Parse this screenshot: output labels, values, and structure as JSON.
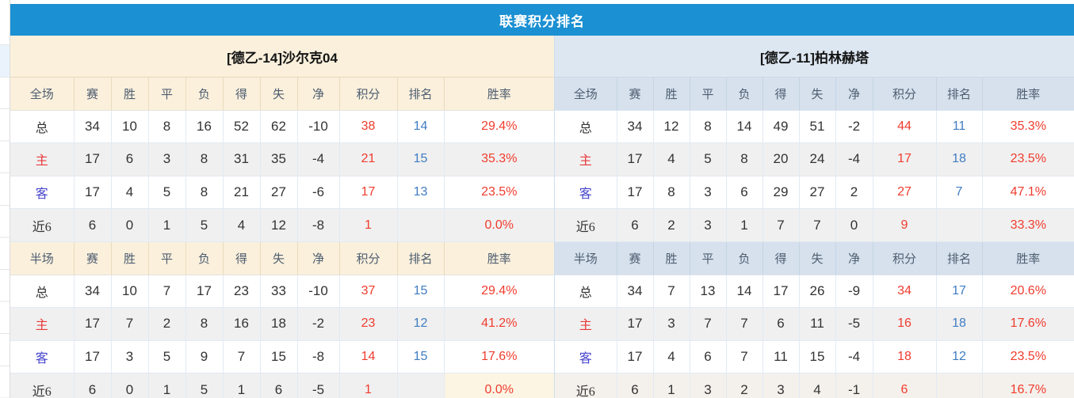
{
  "title": "联赛积分排名",
  "columns": [
    "赛",
    "胜",
    "平",
    "负",
    "得",
    "失",
    "净",
    "积分",
    "排名",
    "胜率"
  ],
  "colors": {
    "title_bar": "#1b90d2",
    "left_panel_header": "#faf0dc",
    "right_panel_header": "#d6e1ed",
    "points_red": "#f03c2e",
    "rank_blue": "#3f7cc2",
    "home_label_red": "#e83a3a",
    "away_label_blue": "#4745cd",
    "alt_row": "#f0f0f0",
    "highlight_cell": "#fdf5e4"
  },
  "panels": [
    {
      "team": "[德乙-14]沙尔克04",
      "sections": [
        {
          "label": "全场",
          "rows": [
            {
              "label": "总",
              "values": [
                "34",
                "10",
                "8",
                "16",
                "52",
                "62",
                "-10"
              ],
              "points": "38",
              "rank": "14",
              "rate": "29.4%"
            },
            {
              "label": "主",
              "values": [
                "17",
                "6",
                "3",
                "8",
                "31",
                "35",
                "-4"
              ],
              "points": "21",
              "rank": "15",
              "rate": "35.3%"
            },
            {
              "label": "客",
              "values": [
                "17",
                "4",
                "5",
                "8",
                "21",
                "27",
                "-6"
              ],
              "points": "17",
              "rank": "13",
              "rate": "23.5%"
            },
            {
              "label": "近6",
              "values": [
                "6",
                "0",
                "1",
                "5",
                "4",
                "12",
                "-8"
              ],
              "points": "1",
              "rank": "",
              "rate": "0.0%"
            }
          ]
        },
        {
          "label": "半场",
          "rows": [
            {
              "label": "总",
              "values": [
                "34",
                "10",
                "7",
                "17",
                "23",
                "33",
                "-10"
              ],
              "points": "37",
              "rank": "15",
              "rate": "29.4%"
            },
            {
              "label": "主",
              "values": [
                "17",
                "7",
                "2",
                "8",
                "16",
                "18",
                "-2"
              ],
              "points": "23",
              "rank": "12",
              "rate": "41.2%"
            },
            {
              "label": "客",
              "values": [
                "17",
                "3",
                "5",
                "9",
                "7",
                "15",
                "-8"
              ],
              "points": "14",
              "rank": "15",
              "rate": "17.6%"
            },
            {
              "label": "近6",
              "values": [
                "6",
                "0",
                "1",
                "5",
                "1",
                "6",
                "-5"
              ],
              "points": "1",
              "rank": "",
              "rate": "0.0%",
              "hl": true
            }
          ]
        }
      ]
    },
    {
      "team": "[德乙-11]柏林赫塔",
      "sections": [
        {
          "label": "全场",
          "rows": [
            {
              "label": "总",
              "values": [
                "34",
                "12",
                "8",
                "14",
                "49",
                "51",
                "-2"
              ],
              "points": "44",
              "rank": "11",
              "rate": "35.3%"
            },
            {
              "label": "主",
              "values": [
                "17",
                "4",
                "5",
                "8",
                "20",
                "24",
                "-4"
              ],
              "points": "17",
              "rank": "18",
              "rate": "23.5%"
            },
            {
              "label": "客",
              "values": [
                "17",
                "8",
                "3",
                "6",
                "29",
                "27",
                "2"
              ],
              "points": "27",
              "rank": "7",
              "rate": "47.1%"
            },
            {
              "label": "近6",
              "values": [
                "6",
                "2",
                "3",
                "1",
                "7",
                "7",
                "0"
              ],
              "points": "9",
              "rank": "",
              "rate": "33.3%"
            }
          ]
        },
        {
          "label": "半场",
          "rows": [
            {
              "label": "总",
              "values": [
                "34",
                "7",
                "13",
                "14",
                "17",
                "26",
                "-9"
              ],
              "points": "34",
              "rank": "17",
              "rate": "20.6%"
            },
            {
              "label": "主",
              "values": [
                "17",
                "3",
                "7",
                "7",
                "6",
                "11",
                "-5"
              ],
              "points": "16",
              "rank": "18",
              "rate": "17.6%"
            },
            {
              "label": "客",
              "values": [
                "17",
                "4",
                "6",
                "7",
                "11",
                "15",
                "-4"
              ],
              "points": "18",
              "rank": "12",
              "rate": "23.5%"
            },
            {
              "label": "近6",
              "values": [
                "6",
                "1",
                "3",
                "2",
                "3",
                "4",
                "-1"
              ],
              "points": "6",
              "rank": "",
              "rate": "16.7%",
              "warm": true
            }
          ]
        }
      ]
    }
  ]
}
